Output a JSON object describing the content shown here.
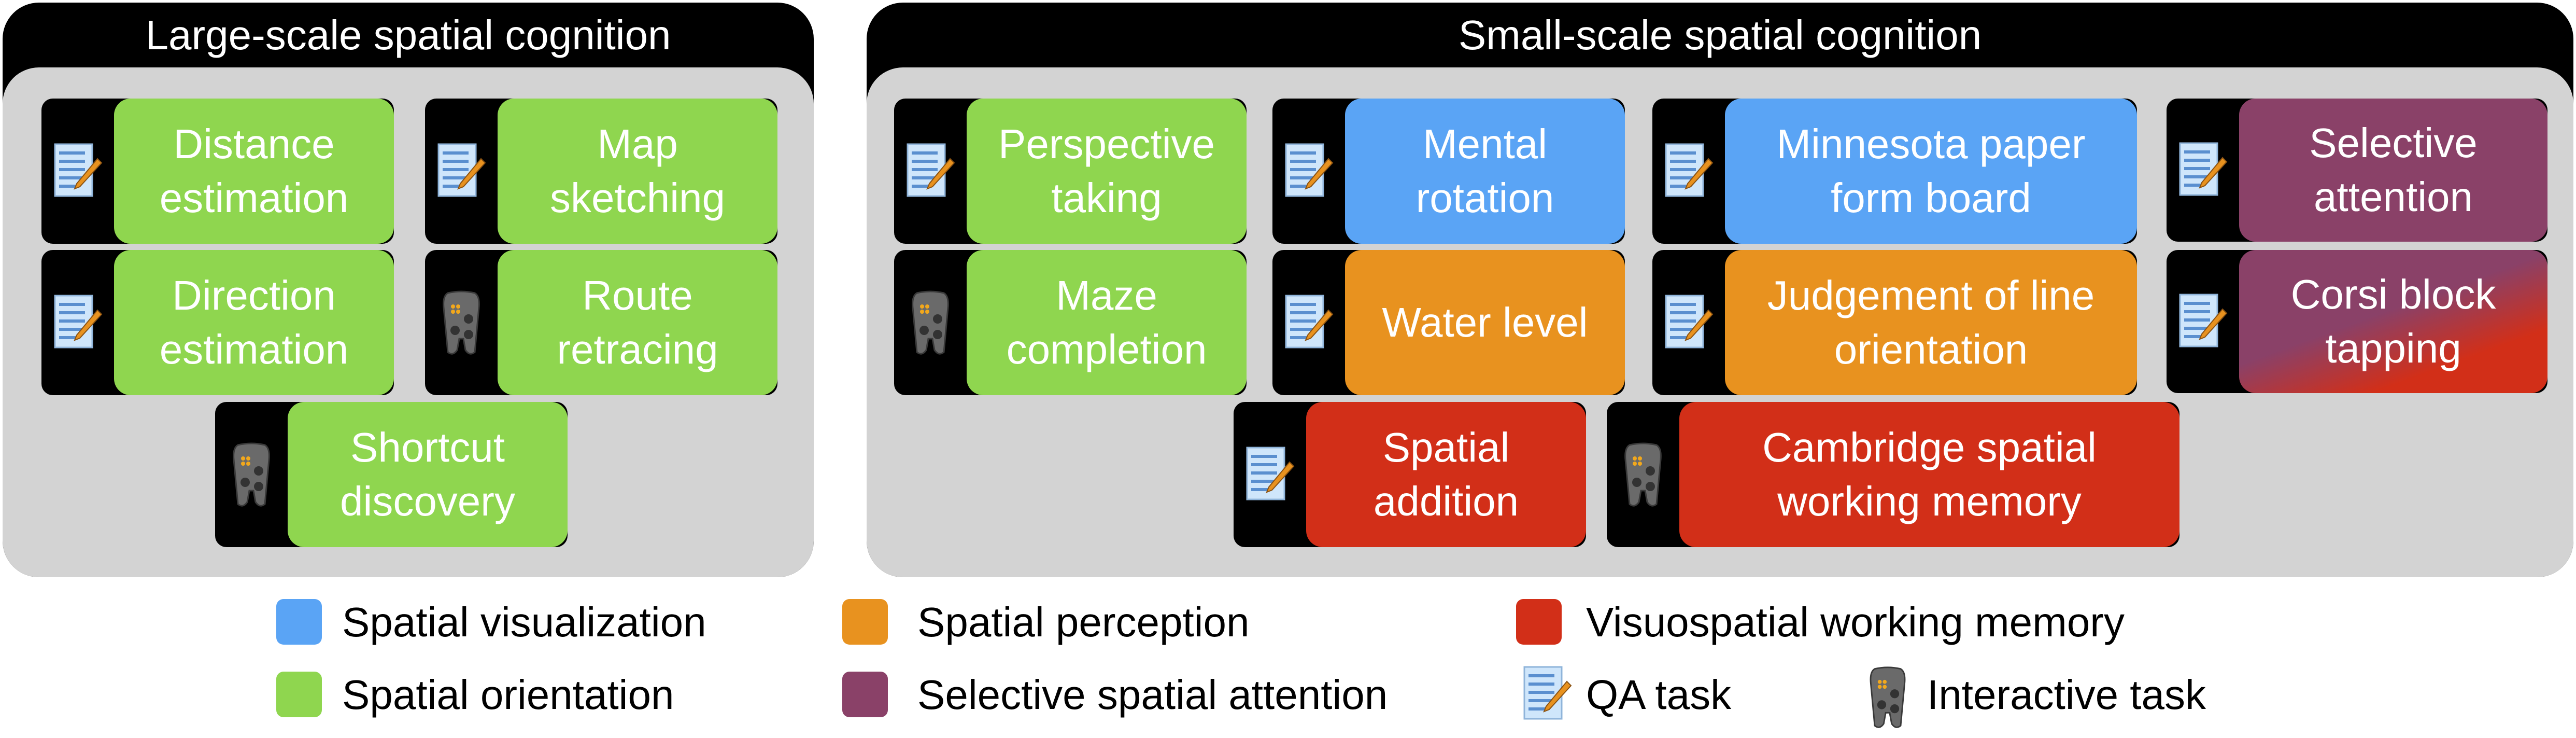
{
  "colors": {
    "spatial_visualization": "#5aa4f5",
    "spatial_orientation": "#8fd64f",
    "spatial_perception": "#e8921f",
    "selective_spatial_attention": "#8a4168",
    "visuospatial_working_memory": "#d22f18"
  },
  "panels": {
    "large": {
      "title": "Large-scale spatial cognition"
    },
    "small": {
      "title": "Small-scale spatial cognition"
    }
  },
  "tasks": [
    {
      "label": "Distance\nestimation",
      "icon": "qa-document-icon",
      "category": "spatial_orientation"
    },
    {
      "label": "Map\nsketching",
      "icon": "qa-document-icon",
      "category": "spatial_orientation"
    },
    {
      "label": "Direction\nestimation",
      "icon": "qa-document-icon",
      "category": "spatial_orientation"
    },
    {
      "label": "Route\nretracing",
      "icon": "gamepad-icon",
      "category": "spatial_orientation"
    },
    {
      "label": "Shortcut\ndiscovery",
      "icon": "gamepad-icon",
      "category": "spatial_orientation"
    },
    {
      "label": "Perspective\ntaking",
      "icon": "qa-document-icon",
      "category": "spatial_orientation"
    },
    {
      "label": "Mental\nrotation",
      "icon": "qa-document-icon",
      "category": "spatial_visualization"
    },
    {
      "label": "Minnesota paper\nform board",
      "icon": "qa-document-icon",
      "category": "spatial_visualization"
    },
    {
      "label": "Selective\nattention",
      "icon": "qa-document-icon",
      "category": "selective_spatial_attention"
    },
    {
      "label": "Maze\ncompletion",
      "icon": "gamepad-icon",
      "category": "spatial_orientation"
    },
    {
      "label": "Water level",
      "icon": "qa-document-icon",
      "category": "spatial_perception"
    },
    {
      "label": "Judgement of line\norientation",
      "icon": "qa-document-icon",
      "category": "spatial_perception"
    },
    {
      "label": "Corsi block\ntapping",
      "icon": "qa-document-icon",
      "category": "selective_spatial_attention",
      "category_secondary": "visuospatial_working_memory"
    },
    {
      "label": "Spatial\naddition",
      "icon": "qa-document-icon",
      "category": "visuospatial_working_memory"
    },
    {
      "label": "Cambridge spatial\nworking memory",
      "icon": "gamepad-icon",
      "category": "visuospatial_working_memory"
    }
  ],
  "legend": {
    "spatial_visualization": "Spatial visualization",
    "spatial_perception": "Spatial perception",
    "visuospatial_working_memory": "Visuospatial working memory",
    "spatial_orientation": "Spatial orientation",
    "selective_spatial_attention": "Selective spatial attention",
    "qa_task": "QA task",
    "interactive_task": "Interactive task"
  }
}
